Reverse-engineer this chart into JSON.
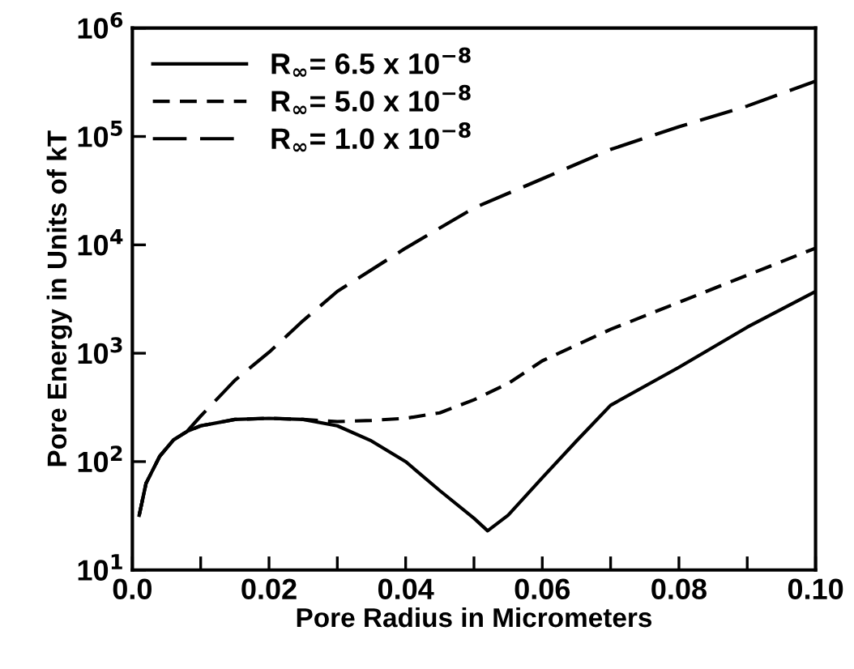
{
  "chart_data": {
    "type": "line",
    "xlabel": "Pore Radius in Micrometers",
    "ylabel": "Pore Energy in Units of kT",
    "log": "y",
    "grid": false,
    "legend": "top left",
    "marker": "none",
    "xlim": [
      0,
      0.1
    ],
    "ylim": [
      10,
      1000000
    ],
    "xticks": [
      {
        "value": 0,
        "label": "0.0"
      },
      {
        "value": 0.01,
        "label": null
      },
      {
        "value": 0.02,
        "label": "0.02"
      },
      {
        "value": 0.03,
        "label": null
      },
      {
        "value": 0.04,
        "label": "0.04"
      },
      {
        "value": 0.05,
        "label": null
      },
      {
        "value": 0.06,
        "label": "0.06"
      },
      {
        "value": 0.07,
        "label": null
      },
      {
        "value": 0.08,
        "label": "0.08"
      },
      {
        "value": 0.09,
        "label": null
      },
      {
        "value": 0.1,
        "label": "0.10"
      }
    ],
    "yticks": [
      {
        "value": 10,
        "label": "10$^{1}$"
      },
      {
        "value": 100,
        "label": "10$^{2}$"
      },
      {
        "value": 1000,
        "label": "10$^{3}$"
      },
      {
        "value": 10000,
        "label": "10$^{4}$"
      },
      {
        "value": 100000,
        "label": "10$^{5}$"
      },
      {
        "value": 1000000,
        "label": "10$^{6}$"
      }
    ],
    "series": [
      {
        "name": "R$_{∞}$= 6.5 x 10$^{−8}$",
        "color": "#000000",
        "line_style": "solid",
        "x": [
          0.001,
          0.002,
          0.004,
          0.006,
          0.008,
          0.01,
          0.015,
          0.02,
          0.025,
          0.03,
          0.035,
          0.04,
          0.045,
          0.05,
          0.052,
          0.055,
          0.06,
          0.065,
          0.07,
          0.08,
          0.09,
          0.1
        ],
        "values": [
          32,
          63,
          112,
          158,
          190,
          214,
          245,
          251,
          245,
          214,
          155,
          100,
          54,
          30,
          23,
          32,
          71,
          155,
          331,
          741,
          1740,
          3720
        ]
      },
      {
        "name": "R$_{∞}$= 5.0 x 10$^{−8}$",
        "color": "#000000",
        "line_style": "dashed",
        "x": [
          0.001,
          0.002,
          0.004,
          0.006,
          0.008,
          0.01,
          0.015,
          0.02,
          0.025,
          0.03,
          0.035,
          0.04,
          0.045,
          0.05,
          0.055,
          0.06,
          0.07,
          0.08,
          0.09,
          0.1
        ],
        "values": [
          32,
          63,
          112,
          158,
          190,
          214,
          245,
          251,
          245,
          234,
          240,
          251,
          282,
          372,
          525,
          851,
          1660,
          2950,
          5250,
          9330
        ]
      },
      {
        "name": "R$_{∞}$= 1.0 x 10$^{−8}$",
        "color": "#000000",
        "line_style": "longdashed",
        "x": [
          0.001,
          0.002,
          0.004,
          0.006,
          0.008,
          0.01,
          0.015,
          0.02,
          0.025,
          0.03,
          0.04,
          0.05,
          0.06,
          0.07,
          0.08,
          0.09,
          0.1
        ],
        "values": [
          32,
          63,
          112,
          158,
          190,
          263,
          562,
          1020,
          2000,
          3720,
          9330,
          21900,
          40700,
          75900,
          123000,
          191000,
          324000
        ]
      }
    ]
  }
}
